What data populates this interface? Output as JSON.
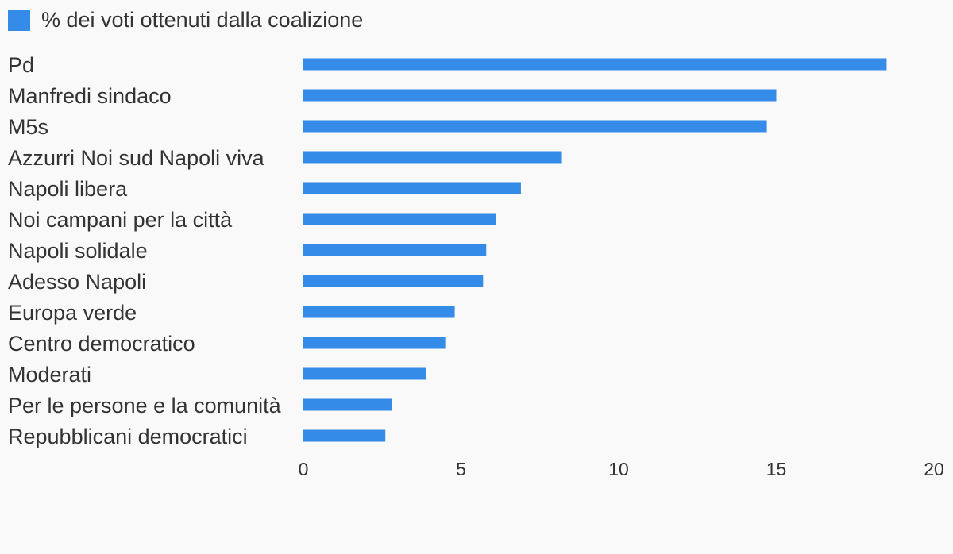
{
  "chart_data": {
    "type": "bar",
    "orientation": "horizontal",
    "legend": {
      "label": "% dei voti ottenuti dalla coalizione",
      "placement": "top-left"
    },
    "categories": [
      "Pd",
      "Manfredi sindaco",
      "M5s",
      "Azzurri Noi sud Napoli viva",
      "Napoli libera",
      "Noi campani per la città",
      "Napoli solidale",
      "Adesso Napoli",
      "Europa verde",
      "Centro democratico",
      "Moderati",
      "Per le persone e la comunità",
      "Repubblicani democratici"
    ],
    "series": [
      {
        "name": "% dei voti ottenuti dalla coalizione",
        "color": "#348be8",
        "values": [
          18.5,
          15.0,
          14.7,
          8.2,
          6.9,
          6.1,
          5.8,
          5.7,
          4.8,
          4.5,
          3.9,
          2.8,
          2.6
        ]
      }
    ],
    "xlim": [
      0,
      20
    ],
    "x_ticks": [
      "0",
      "5",
      "10",
      "15",
      "20"
    ],
    "grid": false,
    "title": "",
    "xlabel": "",
    "ylabel": ""
  }
}
